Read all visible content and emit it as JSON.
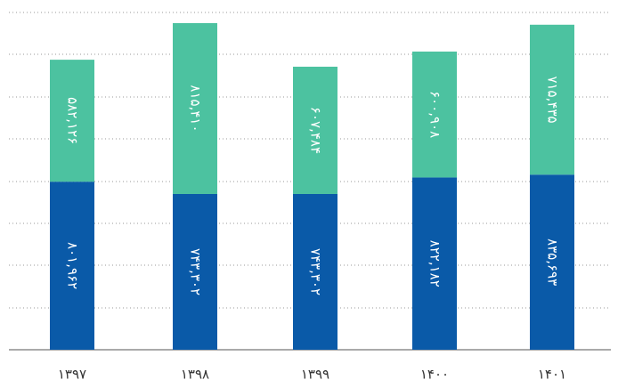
{
  "chart_data": {
    "type": "bar",
    "stacked": true,
    "categories": [
      "۱۳۹۷",
      "۱۳۹۸",
      "۱۳۹۹",
      "۱۴۰۰",
      "۱۴۰۱"
    ],
    "series": [
      {
        "color": "#0a5aa8",
        "values": [
          801962,
          743302,
          743302,
          822182,
          835693
        ],
        "value_labels": [
          "۸۰۱,۹۶۲",
          "۷۴۳,۳۰۲",
          "۷۴۳,۳۰۲",
          "۸۲۲,۱۸۲",
          "۸۳۵,۶۹۳"
        ]
      },
      {
        "color": "#4cc2a0",
        "values": [
          582126,
          815410,
          607484,
          600908,
          715435
        ],
        "value_labels": [
          "۵۸۲,۱۲۶",
          "۸۱۵,۴۱۰",
          "۶۰۷,۴۸۴",
          "۶۰۰,۹۰۸",
          "۷۱۵,۴۳۵"
        ]
      }
    ]
  }
}
